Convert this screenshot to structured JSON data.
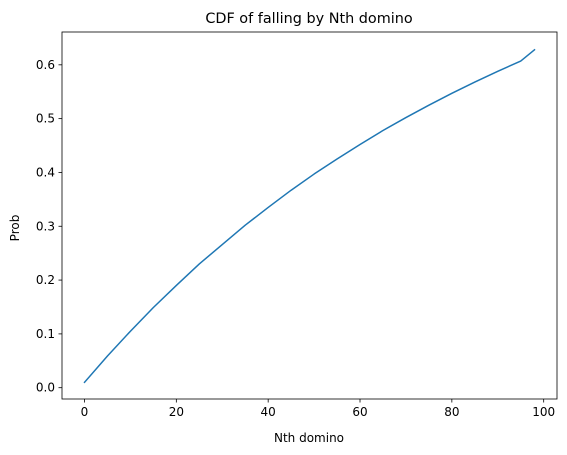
{
  "chart_data": {
    "type": "line",
    "title": "CDF of falling by Nth domino",
    "xlabel": "Nth domino",
    "ylabel": "Prob",
    "xlim": [
      -4.9,
      102.9
    ],
    "ylim": [
      -0.021,
      0.661
    ],
    "xticks": [
      0,
      20,
      40,
      60,
      80,
      100
    ],
    "yticks": [
      0.0,
      0.1,
      0.2,
      0.3,
      0.4,
      0.5,
      0.6
    ],
    "xtick_labels": [
      "0",
      "20",
      "40",
      "60",
      "80",
      "100"
    ],
    "ytick_labels": [
      "0.0",
      "0.1",
      "0.2",
      "0.3",
      "0.4",
      "0.5",
      "0.6"
    ],
    "grid": false,
    "series": [
      {
        "color": "#1f77b4",
        "x": [
          0,
          5,
          10,
          15,
          20,
          25,
          30,
          35,
          40,
          45,
          50,
          55,
          60,
          65,
          70,
          75,
          80,
          85,
          90,
          95,
          98
        ],
        "y": [
          0.01,
          0.059,
          0.105,
          0.149,
          0.19,
          0.23,
          0.266,
          0.302,
          0.335,
          0.367,
          0.397,
          0.425,
          0.452,
          0.478,
          0.502,
          0.525,
          0.547,
          0.568,
          0.588,
          0.607,
          0.628
        ]
      }
    ]
  }
}
